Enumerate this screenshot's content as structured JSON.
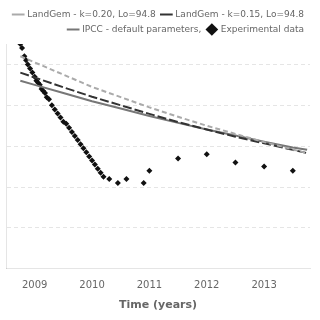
{
  "chart_data": {
    "type": "line",
    "xlabel": "Time (years)",
    "xlim": [
      2008.5,
      2013.8
    ],
    "xticks": [
      2009,
      2010,
      2011,
      2012,
      2013
    ],
    "ylim": [
      0.0,
      0.55
    ],
    "yticks": [
      0.1,
      0.2,
      0.3,
      0.4,
      0.5
    ],
    "grid": "y",
    "tick_labels": "x",
    "legend": "upper right",
    "series": [
      {
        "name": "LandGem - k=0.20, Lo=94.8",
        "type": "line",
        "line_style": "dashed",
        "color": "#aaaaaa",
        "x": [
          2008.75,
          2009.0,
          2009.5,
          2010.0,
          2010.5,
          2011.0,
          2011.5,
          2012.0,
          2012.5,
          2013.0,
          2013.5,
          2013.75
        ],
        "values": [
          0.52,
          0.505,
          0.475,
          0.445,
          0.42,
          0.395,
          0.372,
          0.35,
          0.33,
          0.31,
          0.292,
          0.283
        ]
      },
      {
        "name": "LandGem - k=0.15, Lo=94.8",
        "type": "line",
        "line_style": "dashed",
        "color": "#333333",
        "x": [
          2008.75,
          2009.0,
          2009.5,
          2010.0,
          2010.5,
          2011.0,
          2011.5,
          2012.0,
          2012.5,
          2013.0,
          2013.5,
          2013.75
        ],
        "values": [
          0.48,
          0.468,
          0.444,
          0.421,
          0.4,
          0.379,
          0.359,
          0.341,
          0.323,
          0.307,
          0.291,
          0.283
        ]
      },
      {
        "name": "IPCC - default parameters,",
        "type": "line",
        "line_style": "solid",
        "color": "#777777",
        "x": [
          2008.75,
          2009.0,
          2009.5,
          2010.0,
          2010.5,
          2011.0,
          2011.5,
          2012.0,
          2012.5,
          2013.0,
          2013.5,
          2013.75
        ],
        "values": [
          0.46,
          0.45,
          0.43,
          0.41,
          0.392,
          0.374,
          0.357,
          0.341,
          0.326,
          0.311,
          0.297,
          0.291
        ]
      },
      {
        "name": "Experimental data",
        "type": "scatter",
        "marker": "diamond",
        "color": "#111111",
        "x": [
          2008.75,
          2008.78,
          2008.82,
          2008.85,
          2008.88,
          2008.92,
          2008.96,
          2009.0,
          2009.03,
          2009.06,
          2009.09,
          2009.12,
          2009.15,
          2009.18,
          2009.21,
          2009.25,
          2009.3,
          2009.35,
          2009.4,
          2009.45,
          2009.5,
          2009.55,
          2009.6,
          2009.65,
          2009.7,
          2009.75,
          2009.8,
          2009.85,
          2009.9,
          2009.95,
          2010.0,
          2010.05,
          2010.1,
          2010.15,
          2010.2,
          2010.3,
          2010.45,
          2010.6,
          2010.9,
          2011.0,
          2011.5,
          2012.0,
          2012.5,
          2013.0,
          2013.5
        ],
        "values": [
          0.55,
          0.54,
          0.52,
          0.51,
          0.5,
          0.49,
          0.48,
          0.47,
          0.46,
          0.455,
          0.45,
          0.44,
          0.435,
          0.43,
          0.42,
          0.415,
          0.4,
          0.39,
          0.38,
          0.37,
          0.36,
          0.355,
          0.345,
          0.335,
          0.325,
          0.315,
          0.305,
          0.295,
          0.285,
          0.275,
          0.265,
          0.255,
          0.245,
          0.235,
          0.225,
          0.22,
          0.21,
          0.22,
          0.21,
          0.24,
          0.27,
          0.28,
          0.26,
          0.25,
          0.24
        ]
      }
    ]
  }
}
